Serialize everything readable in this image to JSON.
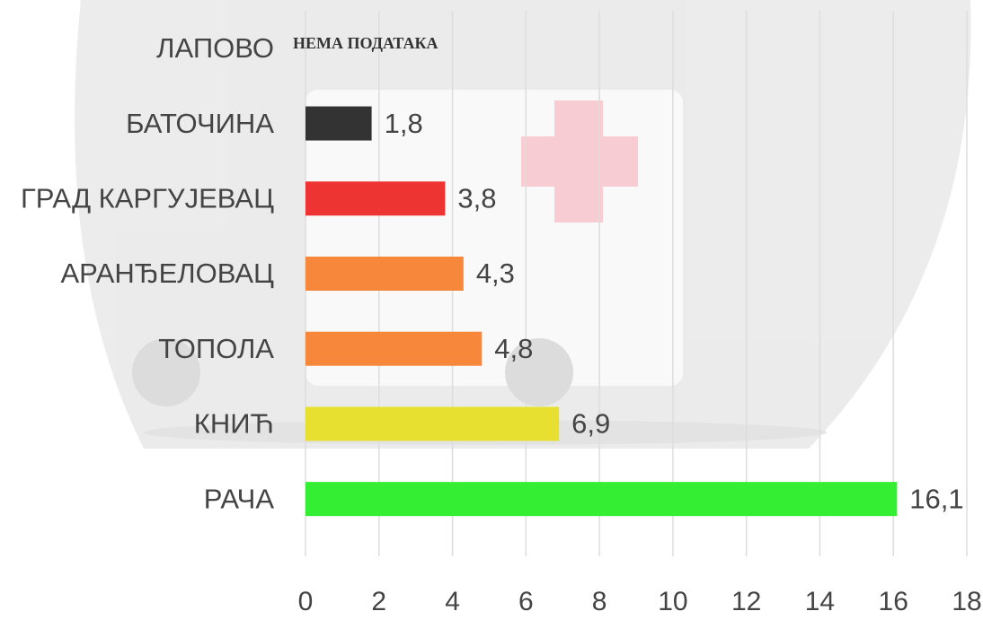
{
  "chart_data": {
    "type": "hbar",
    "categories": [
      "ЛАПОВО",
      "БАТОЧИНА",
      "ГРАД КАРГУЈЕВАЦ",
      "АРАНЂЕЛОВАЦ",
      "ТОПОЛА",
      "КНИЋ",
      "РАЧА"
    ],
    "values": [
      null,
      1.8,
      3.8,
      4.3,
      4.8,
      6.9,
      16.1
    ],
    "value_labels": [
      null,
      "1,8",
      "3,8",
      "4,3",
      "4,8",
      "6,9",
      "16,1"
    ],
    "colors": [
      null,
      "#333333",
      "#ee3333",
      "#f7873a",
      "#f7873a",
      "#e8e030",
      "#33ee33"
    ],
    "annotation": "НЕМА ПОДАТАКА",
    "xlim": [
      0,
      18
    ],
    "xticks": [
      0,
      2,
      4,
      6,
      8,
      10,
      12,
      14,
      16,
      18
    ],
    "grid": true
  }
}
